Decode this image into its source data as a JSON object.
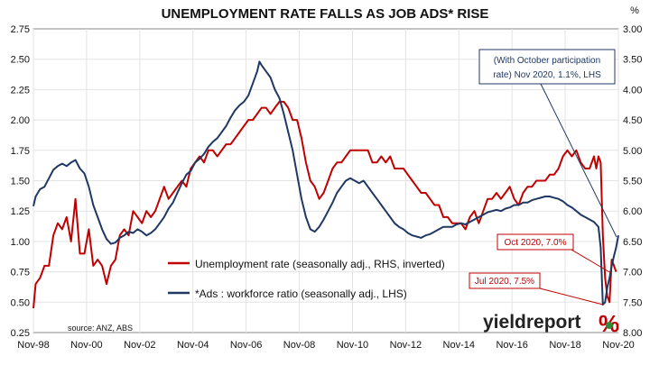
{
  "chart_data": {
    "type": "line",
    "title": "UNEMPLOYMENT RATE FALLS AS JOB ADS* RISE",
    "right_unit": "%",
    "left_axis": {
      "ticks": [
        "0.25",
        "0.50",
        "0.75",
        "1.00",
        "1.25",
        "1.50",
        "1.75",
        "2.00",
        "2.25",
        "2.50",
        "2.75"
      ],
      "ylim": [
        0.25,
        2.75
      ]
    },
    "right_axis": {
      "ticks": [
        "8.00",
        "7.50",
        "7.00",
        "6.50",
        "6.00",
        "5.50",
        "5.00",
        "4.50",
        "4.00",
        "3.50",
        "3.00"
      ],
      "ylim": [
        8.0,
        3.0
      ],
      "inverted": true
    },
    "x_ticks": [
      "Nov-98",
      "Nov-00",
      "Nov-02",
      "Nov-04",
      "Nov-06",
      "Nov-08",
      "Nov-10",
      "Nov-12",
      "Nov-14",
      "Nov-16",
      "Nov-18",
      "Nov-20"
    ],
    "x_range": [
      "1998-11",
      "2020-11"
    ],
    "series": [
      {
        "name": "Unemployment rate (seasonally adj., RHS, inverted)",
        "axis": "right",
        "color": "#c00000",
        "points": [
          [
            "1998-11",
            7.6
          ],
          [
            "1998-12",
            7.2
          ],
          [
            "1999-02",
            7.1
          ],
          [
            "1999-04",
            6.9
          ],
          [
            "1999-06",
            6.9
          ],
          [
            "1999-08",
            6.4
          ],
          [
            "1999-10",
            6.2
          ],
          [
            "1999-12",
            6.3
          ],
          [
            "2000-02",
            6.1
          ],
          [
            "2000-04",
            6.5
          ],
          [
            "2000-06",
            5.8
          ],
          [
            "2000-08",
            6.7
          ],
          [
            "2000-10",
            6.7
          ],
          [
            "2000-12",
            6.3
          ],
          [
            "2001-02",
            6.9
          ],
          [
            "2001-04",
            6.8
          ],
          [
            "2001-06",
            6.9
          ],
          [
            "2001-08",
            7.2
          ],
          [
            "2001-10",
            6.9
          ],
          [
            "2001-12",
            6.8
          ],
          [
            "2002-02",
            6.4
          ],
          [
            "2002-04",
            6.3
          ],
          [
            "2002-06",
            6.4
          ],
          [
            "2002-08",
            6.0
          ],
          [
            "2002-10",
            6.1
          ],
          [
            "2002-12",
            6.2
          ],
          [
            "2003-02",
            6.0
          ],
          [
            "2003-04",
            6.1
          ],
          [
            "2003-06",
            6.0
          ],
          [
            "2003-08",
            5.8
          ],
          [
            "2003-10",
            5.6
          ],
          [
            "2003-12",
            5.8
          ],
          [
            "2004-02",
            5.7
          ],
          [
            "2004-04",
            5.6
          ],
          [
            "2004-06",
            5.5
          ],
          [
            "2004-08",
            5.6
          ],
          [
            "2004-10",
            5.3
          ],
          [
            "2004-12",
            5.2
          ],
          [
            "2005-02",
            5.1
          ],
          [
            "2005-04",
            5.2
          ],
          [
            "2005-06",
            5.0
          ],
          [
            "2005-08",
            5.0
          ],
          [
            "2005-10",
            5.1
          ],
          [
            "2005-12",
            5.0
          ],
          [
            "2006-02",
            4.9
          ],
          [
            "2006-04",
            4.9
          ],
          [
            "2006-06",
            4.8
          ],
          [
            "2006-08",
            4.7
          ],
          [
            "2006-10",
            4.6
          ],
          [
            "2006-12",
            4.5
          ],
          [
            "2007-02",
            4.5
          ],
          [
            "2007-04",
            4.4
          ],
          [
            "2007-06",
            4.3
          ],
          [
            "2007-08",
            4.3
          ],
          [
            "2007-10",
            4.4
          ],
          [
            "2007-12",
            4.3
          ],
          [
            "2008-02",
            4.2
          ],
          [
            "2008-04",
            4.2
          ],
          [
            "2008-06",
            4.3
          ],
          [
            "2008-08",
            4.5
          ],
          [
            "2008-10",
            4.5
          ],
          [
            "2008-12",
            4.8
          ],
          [
            "2009-02",
            5.2
          ],
          [
            "2009-04",
            5.5
          ],
          [
            "2009-06",
            5.6
          ],
          [
            "2009-08",
            5.8
          ],
          [
            "2009-10",
            5.7
          ],
          [
            "2009-12",
            5.5
          ],
          [
            "2010-02",
            5.3
          ],
          [
            "2010-04",
            5.2
          ],
          [
            "2010-06",
            5.2
          ],
          [
            "2010-08",
            5.1
          ],
          [
            "2010-10",
            5.0
          ],
          [
            "2010-12",
            5.0
          ],
          [
            "2011-02",
            5.0
          ],
          [
            "2011-04",
            5.0
          ],
          [
            "2011-06",
            5.0
          ],
          [
            "2011-08",
            5.2
          ],
          [
            "2011-10",
            5.2
          ],
          [
            "2011-12",
            5.1
          ],
          [
            "2012-02",
            5.2
          ],
          [
            "2012-04",
            5.1
          ],
          [
            "2012-06",
            5.3
          ],
          [
            "2012-08",
            5.3
          ],
          [
            "2012-10",
            5.3
          ],
          [
            "2012-12",
            5.4
          ],
          [
            "2013-02",
            5.5
          ],
          [
            "2013-04",
            5.6
          ],
          [
            "2013-06",
            5.7
          ],
          [
            "2013-08",
            5.7
          ],
          [
            "2013-10",
            5.8
          ],
          [
            "2013-12",
            5.9
          ],
          [
            "2014-02",
            5.9
          ],
          [
            "2014-04",
            6.1
          ],
          [
            "2014-06",
            6.1
          ],
          [
            "2014-08",
            6.2
          ],
          [
            "2014-10",
            6.2
          ],
          [
            "2014-12",
            6.2
          ],
          [
            "2015-02",
            6.3
          ],
          [
            "2015-04",
            6.1
          ],
          [
            "2015-06",
            6.0
          ],
          [
            "2015-08",
            6.2
          ],
          [
            "2015-10",
            6.0
          ],
          [
            "2015-12",
            5.8
          ],
          [
            "2016-02",
            5.8
          ],
          [
            "2016-04",
            5.7
          ],
          [
            "2016-06",
            5.8
          ],
          [
            "2016-08",
            5.7
          ],
          [
            "2016-10",
            5.6
          ],
          [
            "2016-12",
            5.8
          ],
          [
            "2017-02",
            5.9
          ],
          [
            "2017-04",
            5.7
          ],
          [
            "2017-06",
            5.6
          ],
          [
            "2017-08",
            5.6
          ],
          [
            "2017-10",
            5.5
          ],
          [
            "2017-12",
            5.5
          ],
          [
            "2018-02",
            5.5
          ],
          [
            "2018-04",
            5.4
          ],
          [
            "2018-06",
            5.4
          ],
          [
            "2018-08",
            5.3
          ],
          [
            "2018-10",
            5.1
          ],
          [
            "2018-12",
            5.0
          ],
          [
            "2019-02",
            5.1
          ],
          [
            "2019-04",
            5.0
          ],
          [
            "2019-06",
            5.2
          ],
          [
            "2019-08",
            5.3
          ],
          [
            "2019-10",
            5.3
          ],
          [
            "2019-12",
            5.1
          ],
          [
            "2020-01",
            5.3
          ],
          [
            "2020-02",
            5.1
          ],
          [
            "2020-03",
            5.2
          ],
          [
            "2020-04",
            6.4
          ],
          [
            "2020-05",
            7.1
          ],
          [
            "2020-06",
            7.4
          ],
          [
            "2020-07",
            7.5
          ],
          [
            "2020-08",
            6.8
          ],
          [
            "2020-09",
            6.9
          ],
          [
            "2020-10",
            7.0
          ]
        ]
      },
      {
        "name": "*Ads : workforce ratio (seasonally adj., LHS)",
        "axis": "left",
        "color": "#1f3864",
        "points": [
          [
            "1998-11",
            1.29
          ],
          [
            "1998-12",
            1.37
          ],
          [
            "1999-02",
            1.43
          ],
          [
            "1999-04",
            1.45
          ],
          [
            "1999-06",
            1.52
          ],
          [
            "1999-08",
            1.59
          ],
          [
            "1999-10",
            1.62
          ],
          [
            "1999-12",
            1.64
          ],
          [
            "2000-02",
            1.62
          ],
          [
            "2000-04",
            1.65
          ],
          [
            "2000-06",
            1.67
          ],
          [
            "2000-08",
            1.6
          ],
          [
            "2000-10",
            1.56
          ],
          [
            "2000-12",
            1.45
          ],
          [
            "2001-02",
            1.3
          ],
          [
            "2001-04",
            1.2
          ],
          [
            "2001-06",
            1.1
          ],
          [
            "2001-08",
            1.02
          ],
          [
            "2001-10",
            0.98
          ],
          [
            "2001-12",
            0.99
          ],
          [
            "2002-02",
            1.03
          ],
          [
            "2002-04",
            1.05
          ],
          [
            "2002-06",
            1.08
          ],
          [
            "2002-08",
            1.07
          ],
          [
            "2002-10",
            1.1
          ],
          [
            "2002-12",
            1.08
          ],
          [
            "2003-02",
            1.05
          ],
          [
            "2003-04",
            1.07
          ],
          [
            "2003-06",
            1.1
          ],
          [
            "2003-08",
            1.15
          ],
          [
            "2003-10",
            1.2
          ],
          [
            "2003-12",
            1.27
          ],
          [
            "2004-02",
            1.32
          ],
          [
            "2004-04",
            1.4
          ],
          [
            "2004-06",
            1.48
          ],
          [
            "2004-08",
            1.55
          ],
          [
            "2004-10",
            1.58
          ],
          [
            "2004-12",
            1.65
          ],
          [
            "2005-02",
            1.68
          ],
          [
            "2005-04",
            1.72
          ],
          [
            "2005-06",
            1.78
          ],
          [
            "2005-08",
            1.82
          ],
          [
            "2005-10",
            1.85
          ],
          [
            "2005-12",
            1.9
          ],
          [
            "2006-02",
            1.95
          ],
          [
            "2006-04",
            2.02
          ],
          [
            "2006-06",
            2.08
          ],
          [
            "2006-08",
            2.12
          ],
          [
            "2006-10",
            2.15
          ],
          [
            "2006-12",
            2.2
          ],
          [
            "2007-02",
            2.3
          ],
          [
            "2007-04",
            2.4
          ],
          [
            "2007-05",
            2.48
          ],
          [
            "2007-06",
            2.45
          ],
          [
            "2007-08",
            2.4
          ],
          [
            "2007-10",
            2.35
          ],
          [
            "2007-12",
            2.25
          ],
          [
            "2008-02",
            2.18
          ],
          [
            "2008-04",
            2.05
          ],
          [
            "2008-06",
            1.9
          ],
          [
            "2008-08",
            1.75
          ],
          [
            "2008-10",
            1.55
          ],
          [
            "2008-12",
            1.35
          ],
          [
            "2009-02",
            1.2
          ],
          [
            "2009-04",
            1.1
          ],
          [
            "2009-06",
            1.08
          ],
          [
            "2009-08",
            1.12
          ],
          [
            "2009-10",
            1.18
          ],
          [
            "2009-12",
            1.25
          ],
          [
            "2010-02",
            1.32
          ],
          [
            "2010-04",
            1.4
          ],
          [
            "2010-06",
            1.45
          ],
          [
            "2010-08",
            1.5
          ],
          [
            "2010-10",
            1.52
          ],
          [
            "2010-12",
            1.5
          ],
          [
            "2011-02",
            1.48
          ],
          [
            "2011-04",
            1.5
          ],
          [
            "2011-06",
            1.45
          ],
          [
            "2011-08",
            1.4
          ],
          [
            "2011-10",
            1.35
          ],
          [
            "2011-12",
            1.3
          ],
          [
            "2012-02",
            1.25
          ],
          [
            "2012-04",
            1.2
          ],
          [
            "2012-06",
            1.15
          ],
          [
            "2012-08",
            1.12
          ],
          [
            "2012-10",
            1.1
          ],
          [
            "2012-12",
            1.07
          ],
          [
            "2013-02",
            1.05
          ],
          [
            "2013-04",
            1.04
          ],
          [
            "2013-06",
            1.03
          ],
          [
            "2013-08",
            1.05
          ],
          [
            "2013-10",
            1.06
          ],
          [
            "2013-12",
            1.08
          ],
          [
            "2014-02",
            1.1
          ],
          [
            "2014-04",
            1.12
          ],
          [
            "2014-06",
            1.12
          ],
          [
            "2014-08",
            1.12
          ],
          [
            "2014-10",
            1.14
          ],
          [
            "2014-12",
            1.15
          ],
          [
            "2015-02",
            1.14
          ],
          [
            "2015-04",
            1.16
          ],
          [
            "2015-06",
            1.18
          ],
          [
            "2015-08",
            1.2
          ],
          [
            "2015-10",
            1.22
          ],
          [
            "2015-12",
            1.24
          ],
          [
            "2016-02",
            1.25
          ],
          [
            "2016-04",
            1.26
          ],
          [
            "2016-06",
            1.25
          ],
          [
            "2016-08",
            1.27
          ],
          [
            "2016-10",
            1.28
          ],
          [
            "2016-12",
            1.3
          ],
          [
            "2017-02",
            1.3
          ],
          [
            "2017-04",
            1.32
          ],
          [
            "2017-06",
            1.32
          ],
          [
            "2017-08",
            1.34
          ],
          [
            "2017-10",
            1.35
          ],
          [
            "2017-12",
            1.36
          ],
          [
            "2018-02",
            1.37
          ],
          [
            "2018-04",
            1.37
          ],
          [
            "2018-06",
            1.36
          ],
          [
            "2018-08",
            1.35
          ],
          [
            "2018-10",
            1.33
          ],
          [
            "2018-12",
            1.3
          ],
          [
            "2019-02",
            1.28
          ],
          [
            "2019-04",
            1.25
          ],
          [
            "2019-06",
            1.22
          ],
          [
            "2019-08",
            1.2
          ],
          [
            "2019-10",
            1.18
          ],
          [
            "2019-12",
            1.16
          ],
          [
            "2020-01",
            1.14
          ],
          [
            "2020-02",
            1.12
          ],
          [
            "2020-03",
            0.95
          ],
          [
            "2020-04",
            0.48
          ],
          [
            "2020-05",
            0.5
          ],
          [
            "2020-06",
            0.62
          ],
          [
            "2020-07",
            0.7
          ],
          [
            "2020-08",
            0.8
          ],
          [
            "2020-09",
            0.88
          ],
          [
            "2020-10",
            0.95
          ],
          [
            "2020-11",
            1.05
          ]
        ]
      }
    ],
    "annotations": [
      {
        "text": "(With October participation rate) Nov 2020, 1.1%, LHS",
        "lines": [
          "(With October participation",
          "rate) Nov 2020, 1.1%, LHS"
        ],
        "color": "#1f3864"
      },
      {
        "text": "Oct 2020, 7.0%",
        "color": "#c00000"
      },
      {
        "text": "Jul 2020, 7.5%",
        "color": "#c00000"
      }
    ],
    "source": "source: ANZ, ABS",
    "logo": {
      "word": "yieldreport",
      "mark": "%"
    }
  }
}
